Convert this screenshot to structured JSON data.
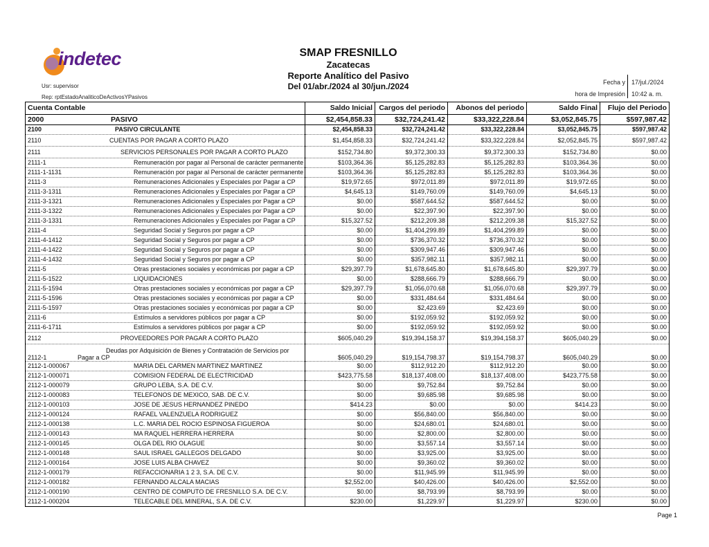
{
  "header": {
    "logo_text": "indetec",
    "title": "SMAP FRESNILLO",
    "state": "Zacatecas",
    "report_name": "Reporte Analítico del Pasivo",
    "period": "Del 01/abr./2024 al 30/jun./2024",
    "user": "Usr: supervisor",
    "report_id": "Rep: rptEstadoAnaliticoDeActivosYPasivos",
    "print_label_1": "Fecha y",
    "print_label_2": "hora de Impresión",
    "print_date": "17/jul./2024",
    "print_time": "10:42 a. m."
  },
  "table": {
    "columns": [
      "Cuenta Contable",
      "Saldo Inicial",
      "Cargos del periodo",
      "Abonos del periodo",
      "Saldo Final",
      "Flujo del Periodo"
    ],
    "rows": [
      {
        "level": 0,
        "code": "2000",
        "desc": "PASIVO",
        "values": [
          "$2,454,858.33",
          "$32,724,241.42",
          "$33,322,228.84",
          "$3,052,845.75",
          "$597,987.42"
        ]
      },
      {
        "level": 1,
        "code": "2100",
        "desc": "PASIVO CIRCULANTE",
        "values": [
          "$2,454,858.33",
          "$32,724,241.42",
          "$33,322,228.84",
          "$3,052,845.75",
          "$597,987.42"
        ]
      },
      {
        "level": 2,
        "code": "2110",
        "desc": "CUENTAS POR PAGAR A CORTO PLAZO",
        "values": [
          "$1,454,858.33",
          "$32,724,241.42",
          "$33,322,228.84",
          "$2,052,845.75",
          "$597,987.42"
        ]
      },
      {
        "level": 3,
        "code": "2111",
        "desc": "SERVICIOS PERSONALES POR PAGAR A CORTO PLAZO",
        "values": [
          "$152,734.80",
          "$9,372,300.33",
          "$9,372,300.33",
          "$152,734.80",
          "$0.00"
        ]
      },
      {
        "level": 4,
        "code": "2111-1",
        "desc": "Remuneración por pagar al Personal de carácter permanente a CP",
        "values": [
          "$103,364.36",
          "$5,125,282.83",
          "$5,125,282.83",
          "$103,364.36",
          "$0.00"
        ]
      },
      {
        "level": 4,
        "code": "2111-1-1131",
        "desc": "Remuneración por pagar al Personal de carácter permanente a CP",
        "values": [
          "$103,364.36",
          "$5,125,282.83",
          "$5,125,282.83",
          "$103,364.36",
          "$0.00"
        ]
      },
      {
        "level": 4,
        "code": "2111-3",
        "desc": "Remuneraciones Adicionales y Especiales por Pagar a CP",
        "values": [
          "$19,972.65",
          "$972,011.89",
          "$972,011.89",
          "$19,972.65",
          "$0.00"
        ]
      },
      {
        "level": 4,
        "code": "2111-3-1311",
        "desc": "Remuneraciones Adicionales y Especiales por Pagar a CP",
        "values": [
          "$4,645.13",
          "$149,760.09",
          "$149,760.09",
          "$4,645.13",
          "$0.00"
        ]
      },
      {
        "level": 4,
        "code": "2111-3-1321",
        "desc": "Remuneraciones Adicionales y Especiales por Pagar a CP",
        "values": [
          "$0.00",
          "$587,644.52",
          "$587,644.52",
          "$0.00",
          "$0.00"
        ]
      },
      {
        "level": 4,
        "code": "2111-3-1322",
        "desc": "Remuneraciones Adicionales y Especiales por Pagar a CP",
        "values": [
          "$0.00",
          "$22,397.90",
          "$22,397.90",
          "$0.00",
          "$0.00"
        ]
      },
      {
        "level": 4,
        "code": "2111-3-1331",
        "desc": "Remuneraciones Adicionales y Especiales por Pagar a CP",
        "values": [
          "$15,327.52",
          "$212,209.38",
          "$212,209.38",
          "$15,327.52",
          "$0.00"
        ]
      },
      {
        "level": 4,
        "code": "2111-4",
        "desc": "Seguridad Social y Seguros por pagar a CP",
        "values": [
          "$0.00",
          "$1,404,299.89",
          "$1,404,299.89",
          "$0.00",
          "$0.00"
        ]
      },
      {
        "level": 4,
        "code": "2111-4-1412",
        "desc": "Seguridad Social y Seguros por pagar a CP",
        "values": [
          "$0.00",
          "$736,370.32",
          "$736,370.32",
          "$0.00",
          "$0.00"
        ]
      },
      {
        "level": 4,
        "code": "2111-4-1422",
        "desc": "Seguridad Social y Seguros por pagar a CP",
        "values": [
          "$0.00",
          "$309,947.46",
          "$309,947.46",
          "$0.00",
          "$0.00"
        ]
      },
      {
        "level": 4,
        "code": "2111-4-1432",
        "desc": "Seguridad Social y Seguros por pagar a CP",
        "values": [
          "$0.00",
          "$357,982.11",
          "$357,982.11",
          "$0.00",
          "$0.00"
        ]
      },
      {
        "level": 4,
        "code": "2111-5",
        "desc": "Otras prestaciones sociales y económicas por pagar a CP",
        "values": [
          "$29,397.79",
          "$1,678,645.80",
          "$1,678,645.80",
          "$29,397.79",
          "$0.00"
        ]
      },
      {
        "level": 4,
        "code": "2111-5-1522",
        "desc": "LIQUIDACIONES",
        "values": [
          "$0.00",
          "$288,666.79",
          "$288,666.79",
          "$0.00",
          "$0.00"
        ]
      },
      {
        "level": 4,
        "code": "2111-5-1594",
        "desc": "Otras prestaciones sociales y económicas por pagar a CP",
        "values": [
          "$29,397.79",
          "$1,056,070.68",
          "$1,056,070.68",
          "$29,397.79",
          "$0.00"
        ]
      },
      {
        "level": 4,
        "code": "2111-5-1596",
        "desc": "Otras prestaciones sociales y económicas por pagar a CP",
        "values": [
          "$0.00",
          "$331,484.64",
          "$331,484.64",
          "$0.00",
          "$0.00"
        ]
      },
      {
        "level": 4,
        "code": "2111-5-1597",
        "desc": "Otras prestaciones sociales y económicas por pagar a CP",
        "values": [
          "$0.00",
          "$2,423.69",
          "$2,423.69",
          "$0.00",
          "$0.00"
        ]
      },
      {
        "level": 4,
        "code": "2111-6",
        "desc": "Estímulos a servidores públicos por pagar a CP",
        "values": [
          "$0.00",
          "$192,059.92",
          "$192,059.92",
          "$0.00",
          "$0.00"
        ]
      },
      {
        "level": 4,
        "code": "2111-6-1711",
        "desc": "Estímulos a servidores públicos por pagar a CP",
        "values": [
          "$0.00",
          "$192,059.92",
          "$192,059.92",
          "$0.00",
          "$0.00"
        ]
      },
      {
        "level": 3,
        "code": "2112",
        "desc": "PROVEEDORES POR PAGAR A CORTO PLAZO",
        "values": [
          "$605,040.29",
          "$19,394,158.37",
          "$19,394,158.37",
          "$605,040.29",
          "$0.00"
        ]
      },
      {
        "level": 5,
        "code": "2112-1",
        "desc": "Deudas por Adquisición de Bienes y Contratación de Servicios por",
        "desc2": "Pagar a CP",
        "values": [
          "$605,040.29",
          "$19,154,798.37",
          "$19,154,798.37",
          "$605,040.29",
          "$0.00"
        ]
      },
      {
        "level": 4,
        "code": "2112-1-000067",
        "desc": "MARIA DEL CARMEN MARTINEZ MARTINEZ",
        "values": [
          "$0.00",
          "$112,912.20",
          "$112,912.20",
          "$0.00",
          "$0.00"
        ]
      },
      {
        "level": 4,
        "code": "2112-1-000071",
        "desc": "COMISION FEDERAL DE ELECTRICIDAD",
        "values": [
          "$423,775.58",
          "$18,137,408.00",
          "$18,137,408.00",
          "$423,775.58",
          "$0.00"
        ]
      },
      {
        "level": 4,
        "code": "2112-1-000079",
        "desc": "GRUPO LEBA, S.A. DE C.V.",
        "values": [
          "$0.00",
          "$9,752.84",
          "$9,752.84",
          "$0.00",
          "$0.00"
        ]
      },
      {
        "level": 4,
        "code": "2112-1-000083",
        "desc": "TELEFONOS DE MEXICO, SAB. DE C.V.",
        "values": [
          "$0.00",
          "$9,685.98",
          "$9,685.98",
          "$0.00",
          "$0.00"
        ]
      },
      {
        "level": 4,
        "code": "2112-1-000103",
        "desc": "JOSE DE JESUS HERNANDEZ PINEDO",
        "values": [
          "$414.23",
          "$0.00",
          "$0.00",
          "$414.23",
          "$0.00"
        ]
      },
      {
        "level": 4,
        "code": "2112-1-000124",
        "desc": "RAFAEL VALENZUELA RODRIGUEZ",
        "values": [
          "$0.00",
          "$56,840.00",
          "$56,840.00",
          "$0.00",
          "$0.00"
        ]
      },
      {
        "level": 4,
        "code": "2112-1-000138",
        "desc": "L.C. MARIA DEL ROCIO ESPINOSA FIGUEROA",
        "values": [
          "$0.00",
          "$24,680.01",
          "$24,680.01",
          "$0.00",
          "$0.00"
        ]
      },
      {
        "level": 4,
        "code": "2112-1-000143",
        "desc": "MA RAQUEL HERRERA HERRERA",
        "values": [
          "$0.00",
          "$2,800.00",
          "$2,800.00",
          "$0.00",
          "$0.00"
        ]
      },
      {
        "level": 4,
        "code": "2112-1-000145",
        "desc": "OLGA DEL RIO OLAGUE",
        "values": [
          "$0.00",
          "$3,557.14",
          "$3,557.14",
          "$0.00",
          "$0.00"
        ]
      },
      {
        "level": 4,
        "code": "2112-1-000148",
        "desc": "SAUL ISRAEL GALLEGOS DELGADO",
        "values": [
          "$0.00",
          "$3,925.00",
          "$3,925.00",
          "$0.00",
          "$0.00"
        ]
      },
      {
        "level": 4,
        "code": "2112-1-000164",
        "desc": "JOSE LUIS ALBA CHAVEZ",
        "values": [
          "$0.00",
          "$9,360.02",
          "$9,360.02",
          "$0.00",
          "$0.00"
        ]
      },
      {
        "level": 4,
        "code": "2112-1-000179",
        "desc": "REFACCIONARIA 1 2 3, S.A. DE C.V.",
        "values": [
          "$0.00",
          "$11,945.99",
          "$11,945.99",
          "$0.00",
          "$0.00"
        ]
      },
      {
        "level": 4,
        "code": "2112-1-000182",
        "desc": "FERNANDO ALCALA MACIAS",
        "values": [
          "$2,552.00",
          "$40,426.00",
          "$40,426.00",
          "$2,552.00",
          "$0.00"
        ]
      },
      {
        "level": 4,
        "code": "2112-1-000190",
        "desc": "CENTRO DE COMPUTO DE FRESNILLO S.A. DE C.V.",
        "values": [
          "$0.00",
          "$8,793.99",
          "$8,793.99",
          "$0.00",
          "$0.00"
        ]
      },
      {
        "level": 4,
        "code": "2112-1-000204",
        "desc": "TELECABLE DEL MINERAL, S.A. DE C.V.",
        "values": [
          "$230.00",
          "$1,229.97",
          "$1,229.97",
          "$230.00",
          "$0.00"
        ]
      }
    ]
  },
  "footer": {
    "page": "Page 1"
  }
}
